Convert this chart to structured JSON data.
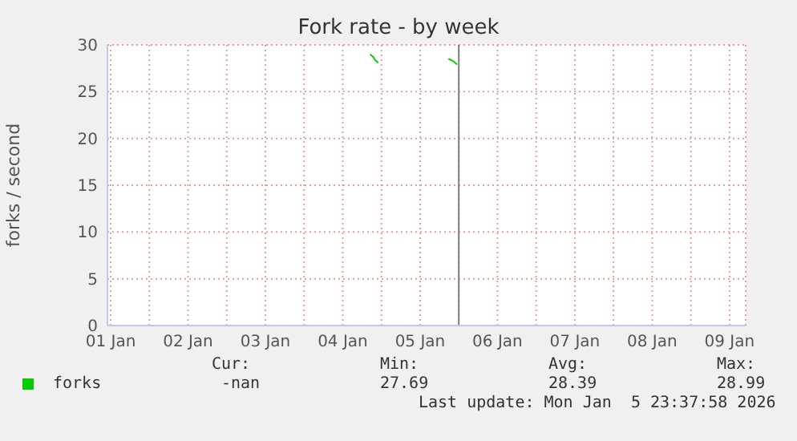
{
  "chart_data": {
    "type": "line",
    "title": "Fork rate - by week",
    "ylabel": "forks / second",
    "x": [
      "2026-01-04T20:30",
      "2026-01-04T21:30",
      "2026-01-04T22:00",
      "2026-01-04T23:00",
      "2026-01-05T12:00",
      "2026-01-05T20:45",
      "2026-01-05T21:30",
      "2026-01-05T22:30",
      "2026-01-05T23:30"
    ],
    "series": [
      {
        "name": "forks",
        "color": "#00cc00",
        "values": [
          29.0,
          28.7,
          28.4,
          28.1,
          null,
          28.5,
          28.4,
          28.2,
          27.9
        ]
      }
    ],
    "xlim": [
      "2026-01-01T11:00",
      "2026-01-09T17:00"
    ],
    "xticks": [
      {
        "value": "2026-01-01T12:00",
        "label": "01 Jan"
      },
      {
        "value": "2026-01-02T00:00",
        "label": null
      },
      {
        "value": "2026-01-02T12:00",
        "label": "02 Jan"
      },
      {
        "value": "2026-01-03T00:00",
        "label": null
      },
      {
        "value": "2026-01-03T12:00",
        "label": "03 Jan"
      },
      {
        "value": "2026-01-04T00:00",
        "label": null
      },
      {
        "value": "2026-01-04T12:00",
        "label": "04 Jan"
      },
      {
        "value": "2026-01-05T00:00",
        "label": null
      },
      {
        "value": "2026-01-05T12:00",
        "label": "05 Jan"
      },
      {
        "value": "2026-01-06T00:00",
        "label": null
      },
      {
        "value": "2026-01-06T12:00",
        "label": "06 Jan"
      },
      {
        "value": "2026-01-07T00:00",
        "label": null
      },
      {
        "value": "2026-01-07T12:00",
        "label": "07 Jan"
      },
      {
        "value": "2026-01-08T00:00",
        "label": null
      },
      {
        "value": "2026-01-08T12:00",
        "label": "08 Jan"
      },
      {
        "value": "2026-01-09T00:00",
        "label": null
      },
      {
        "value": "2026-01-09T12:00",
        "label": "09 Jan"
      }
    ],
    "ylim": [
      0,
      30
    ],
    "yticks": [
      0,
      5,
      10,
      15,
      20,
      25,
      30
    ],
    "ref_lines": [
      {
        "axis": "x",
        "value": "2026-01-06T00:00",
        "color": "#7f7f7f"
      }
    ],
    "grid": true,
    "legend": "bottom left",
    "annotations": [
      "Cur:",
      "Min:",
      "Avg:",
      "Max:",
      "-nan",
      "27.69",
      "28.39",
      "28.99",
      "Last update: Mon Jan  5 23:37:58 2026"
    ]
  }
}
